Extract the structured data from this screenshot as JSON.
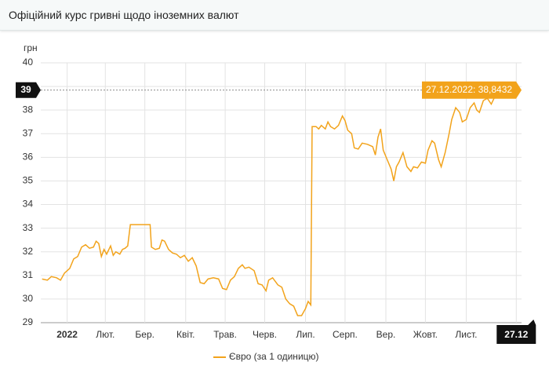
{
  "header": {
    "title": "Офіційний курс гривні щодо іноземних валют"
  },
  "chart_data": {
    "type": "line",
    "y_unit": "грн",
    "x": [
      1,
      5,
      8,
      12,
      15,
      18,
      22,
      25,
      28,
      31,
      34,
      37,
      40,
      42,
      44,
      46,
      48,
      50,
      53,
      55,
      57,
      60,
      62,
      64,
      66,
      68,
      70,
      75,
      80,
      83,
      84,
      87,
      90,
      92,
      94,
      97,
      100,
      103,
      106,
      109,
      112,
      115,
      118,
      121,
      124,
      127,
      131,
      135,
      138,
      141,
      144,
      147,
      150,
      153,
      155,
      158,
      162,
      165,
      168,
      171,
      173,
      176,
      180,
      183,
      186,
      189,
      192,
      195,
      198,
      201,
      203,
      205,
      206,
      209,
      211,
      213,
      216,
      218,
      220,
      223,
      226,
      229,
      231,
      233,
      236,
      238,
      241,
      244,
      248,
      252,
      254,
      256,
      258,
      260,
      263,
      266,
      268,
      270,
      272,
      275,
      278,
      281,
      283,
      286,
      289,
      292,
      294,
      297,
      299,
      302,
      304,
      307,
      310,
      312,
      315,
      318,
      320,
      323,
      326,
      329,
      331,
      333,
      336,
      339,
      342,
      345,
      348,
      351,
      354,
      357,
      361
    ],
    "series": [
      {
        "name": "Євро (за 1 одиницю)",
        "color": "#f2a31b",
        "values": [
          30.85,
          30.8,
          30.95,
          30.9,
          30.8,
          31.1,
          31.3,
          31.7,
          31.8,
          32.2,
          32.3,
          32.15,
          32.2,
          32.45,
          32.35,
          31.8,
          32.1,
          31.9,
          32.25,
          31.85,
          32.0,
          31.9,
          32.1,
          32.15,
          32.25,
          33.15,
          33.15,
          33.15,
          33.15,
          33.15,
          32.2,
          32.1,
          32.15,
          32.5,
          32.45,
          32.1,
          31.95,
          31.9,
          31.75,
          31.85,
          31.6,
          31.75,
          31.4,
          30.7,
          30.65,
          30.85,
          30.9,
          30.85,
          30.45,
          30.4,
          30.8,
          30.95,
          31.3,
          31.45,
          31.3,
          31.35,
          31.2,
          30.65,
          30.6,
          30.35,
          30.8,
          30.9,
          30.6,
          30.5,
          30.0,
          29.8,
          29.7,
          29.3,
          29.3,
          29.6,
          29.9,
          29.75,
          37.3,
          37.3,
          37.2,
          37.35,
          37.2,
          37.5,
          37.3,
          37.2,
          37.35,
          37.75,
          37.55,
          37.15,
          37.0,
          36.4,
          36.35,
          36.6,
          36.55,
          36.45,
          36.1,
          36.85,
          37.2,
          36.3,
          35.9,
          35.5,
          35.0,
          35.6,
          35.8,
          36.2,
          35.6,
          35.4,
          35.6,
          35.55,
          35.8,
          35.75,
          36.3,
          36.7,
          36.6,
          35.9,
          35.6,
          36.2,
          37.0,
          37.6,
          38.1,
          37.9,
          37.5,
          37.6,
          38.1,
          38.3,
          38.0,
          37.9,
          38.4,
          38.5,
          38.25,
          38.6,
          38.65,
          38.75,
          38.9,
          38.8,
          38.8432
        ]
      }
    ],
    "xlim": [
      0,
      365
    ],
    "ylim": [
      29,
      40
    ],
    "xticks": [
      {
        "value": 20,
        "label": "2022"
      },
      {
        "value": 49,
        "label": "Лют."
      },
      {
        "value": 79,
        "label": "Бер."
      },
      {
        "value": 110,
        "label": "Квіт."
      },
      {
        "value": 140,
        "label": "Трав."
      },
      {
        "value": 170,
        "label": "Черв."
      },
      {
        "value": 201,
        "label": "Лип."
      },
      {
        "value": 231,
        "label": "Серп."
      },
      {
        "value": 262,
        "label": "Вер."
      },
      {
        "value": 292,
        "label": "Жовт."
      },
      {
        "value": 323,
        "label": "Лист."
      },
      {
        "value": 361,
        "label": "27.12"
      }
    ],
    "yticks": [
      29,
      30,
      31,
      32,
      33,
      34,
      35,
      36,
      37,
      38,
      39,
      40
    ],
    "grid": true,
    "pointer_y_label": "39",
    "tooltip": "27.12.2022: 38,8432"
  }
}
